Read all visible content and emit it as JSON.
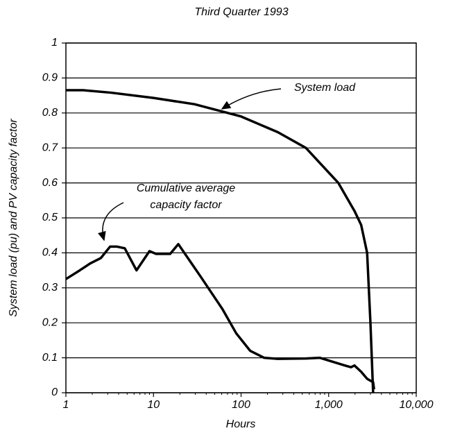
{
  "chart_data": {
    "type": "line",
    "title": "Third Quarter 1993",
    "xlabel": "Hours",
    "ylabel": "System load (pu) and PV capacity factor",
    "xscale": "log",
    "xlim": [
      1,
      10000
    ],
    "xticks": [
      1,
      10,
      100,
      {
        "value": 1000,
        "label": "1,000"
      },
      {
        "value": 10000,
        "label": "10,000"
      }
    ],
    "ylim": [
      0,
      1
    ],
    "yticks": [
      0,
      0.1,
      0.2,
      0.3,
      0.4,
      0.5,
      0.6,
      0.7,
      0.8,
      0.9,
      1
    ],
    "grid": true,
    "series": [
      {
        "name": "System load",
        "color": "#000000",
        "x": [
          1,
          1.58,
          3.28,
          10,
          29.4,
          100,
          263,
          550,
          1290,
          1970,
          2350,
          2750,
          3000,
          3220
        ],
        "values": [
          0.865,
          0.865,
          0.858,
          0.843,
          0.825,
          0.79,
          0.745,
          0.7,
          0.6,
          0.52,
          0.48,
          0.4,
          0.2,
          0.0
        ]
      },
      {
        "name": "Cumulative average capacity factor",
        "color": "#000000",
        "x": [
          1,
          1.44,
          1.9,
          2.5,
          3.2,
          3.8,
          4.7,
          6.4,
          9,
          10.7,
          15.5,
          19.2,
          35,
          61,
          88,
          127,
          183,
          262,
          550,
          790,
          1530,
          1800,
          1970,
          2350,
          2750,
          3220,
          3300
        ],
        "values": [
          0.325,
          0.35,
          0.37,
          0.385,
          0.418,
          0.418,
          0.413,
          0.35,
          0.405,
          0.397,
          0.397,
          0.425,
          0.33,
          0.24,
          0.17,
          0.12,
          0.1,
          0.097,
          0.098,
          0.1,
          0.078,
          0.073,
          0.078,
          0.06,
          0.04,
          0.03,
          0.01
        ]
      }
    ],
    "annotations": [
      {
        "lines": [
          "System load"
        ]
      },
      {
        "lines": [
          "Cumulative average",
          "capacity factor"
        ]
      }
    ]
  }
}
